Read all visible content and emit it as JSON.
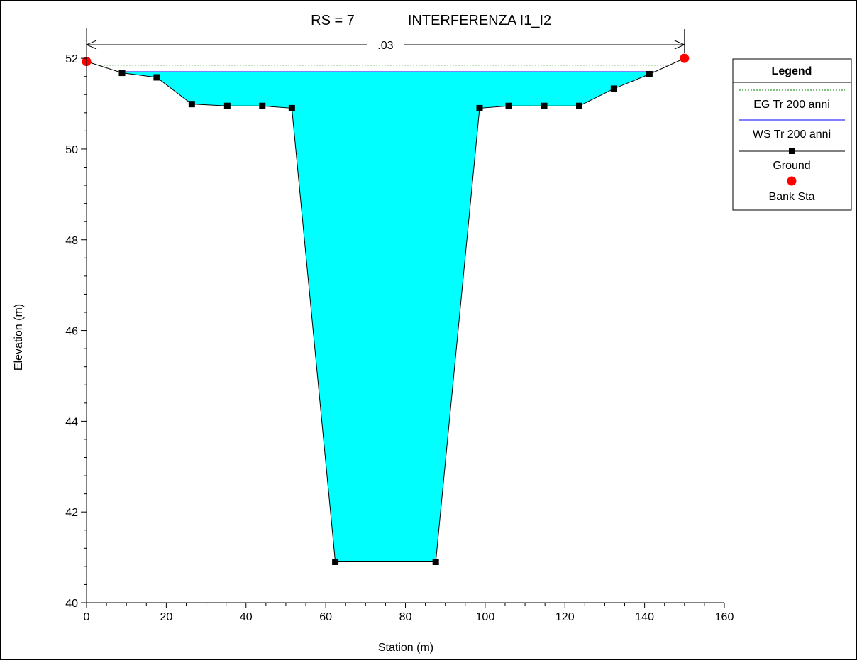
{
  "chart_data": {
    "type": "line",
    "title_rs": "RS = 7",
    "title_name": "INTERFERENZA I1_I2",
    "xlabel": "Station (m)",
    "ylabel": "Elevation (m)",
    "xlim": [
      0,
      160
    ],
    "ylim": [
      40,
      52.8
    ],
    "xticks": [
      "0",
      "20",
      "40",
      "60",
      "80",
      "100",
      "120",
      "140",
      "160"
    ],
    "yticks": [
      "40",
      "42",
      "44",
      "46",
      "48",
      "50",
      "52"
    ],
    "manning_label": ".03",
    "manning_span": [
      0,
      150
    ],
    "ground": {
      "x": [
        0,
        8.9,
        17.6,
        26.4,
        35.3,
        44.1,
        51.5,
        62.4,
        87.6,
        98.6,
        105.9,
        114.8,
        123.6,
        132.3,
        141.2,
        150
      ],
      "y": [
        51.93,
        51.68,
        51.58,
        50.99,
        50.95,
        50.95,
        50.9,
        40.9,
        40.9,
        50.9,
        50.95,
        50.95,
        50.95,
        51.33,
        51.65,
        52.0
      ]
    },
    "ws": {
      "name": "WS Tr 200 anni",
      "elevation": 51.7,
      "color": "#0000ff",
      "fill": "#00ffff"
    },
    "eg": {
      "name": "EG Tr 200 anni",
      "elevation": 51.85,
      "color": "#008000"
    },
    "bank_sta": {
      "name": "Bank Sta",
      "x": [
        0,
        150
      ],
      "y": [
        51.93,
        52.0
      ],
      "color": "#ff0000"
    },
    "legend": {
      "title": "Legend",
      "entries": [
        "EG Tr 200 anni",
        "WS Tr 200 anni",
        "Ground",
        "Bank Sta"
      ],
      "placement": "top-right"
    }
  }
}
